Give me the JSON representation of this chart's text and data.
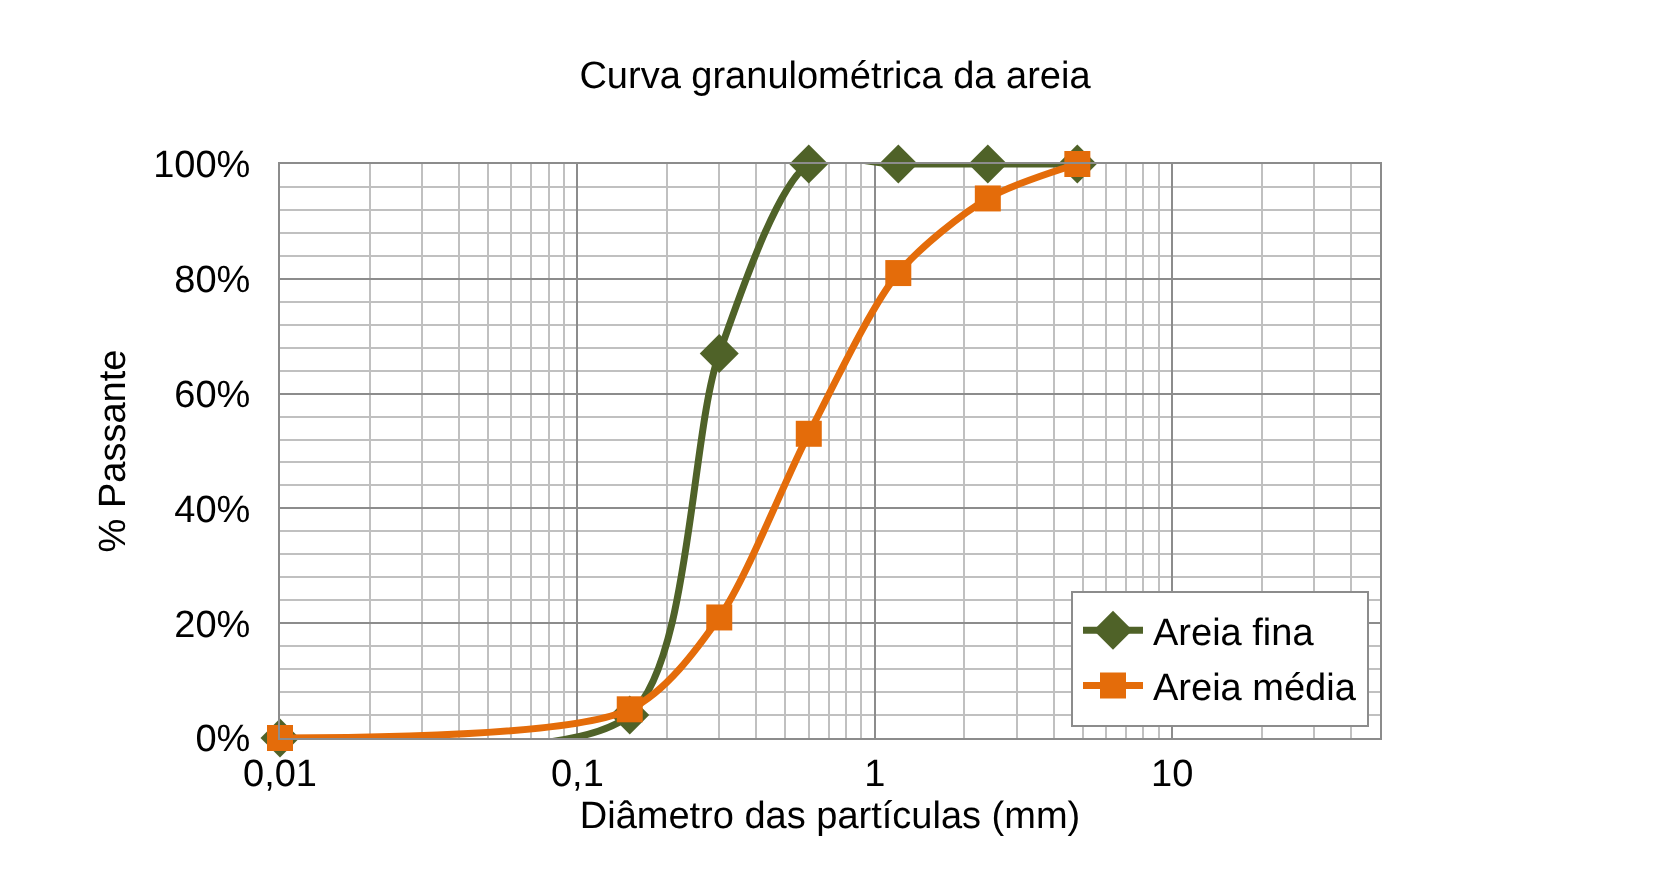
{
  "chart_data": {
    "type": "line",
    "title": "Curva granulométrica da areia",
    "xlabel": "Diâmetro das partículas (mm)",
    "ylabel": "% Passante",
    "series": [
      {
        "name": "Areia fina",
        "color": "#4f6228",
        "marker": "diamond",
        "x": [
          0.01,
          0.15,
          0.3,
          0.6,
          1.2,
          2.4,
          4.8
        ],
        "values": [
          0,
          4,
          67,
          100,
          100,
          100,
          100
        ]
      },
      {
        "name": "Areia média",
        "color": "#e46c0a",
        "marker": "square",
        "x": [
          0.01,
          0.15,
          0.3,
          0.6,
          1.2,
          2.4,
          4.8
        ],
        "values": [
          0,
          5,
          21,
          53,
          81,
          94,
          100
        ]
      }
    ],
    "log": "x",
    "xlim": [
      0.01,
      50
    ],
    "xticks": [
      {
        "value": 0.01,
        "label": "0,01"
      },
      {
        "value": 0.1,
        "label": "0,1"
      },
      1,
      10
    ],
    "ylim": [
      0,
      100
    ],
    "yticks": [
      {
        "value": 0,
        "label": "0%"
      },
      {
        "value": 20,
        "label": "20%"
      },
      {
        "value": 40,
        "label": "40%"
      },
      {
        "value": 60,
        "label": "60%"
      },
      {
        "value": 80,
        "label": "80%"
      },
      {
        "value": 100,
        "label": "100%"
      }
    ],
    "grid": true,
    "legend": "bottom right",
    "line_style": "solid"
  }
}
